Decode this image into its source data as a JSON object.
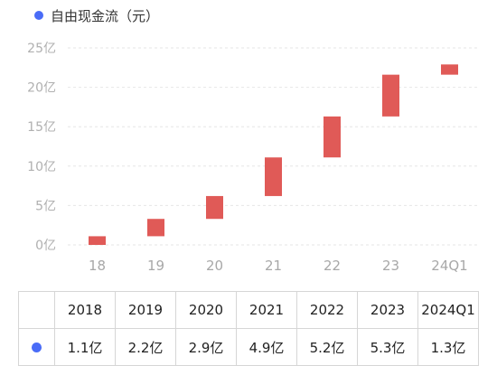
{
  "legend": {
    "label": "自由现金流（元）",
    "dot_color": "#4a6cf7"
  },
  "chart_data": {
    "type": "bar",
    "subtype": "waterfall",
    "categories": [
      "18",
      "19",
      "20",
      "21",
      "22",
      "23",
      "24Q1"
    ],
    "ranges": [
      [
        0,
        1.1
      ],
      [
        1.1,
        3.3
      ],
      [
        3.3,
        6.2
      ],
      [
        6.2,
        11.1
      ],
      [
        11.1,
        16.3
      ],
      [
        16.3,
        21.6
      ],
      [
        21.6,
        22.9
      ]
    ],
    "values": [
      1.1,
      2.2,
      2.9,
      4.9,
      5.2,
      5.3,
      1.3
    ],
    "y_ticks": [
      "0亿",
      "5亿",
      "10亿",
      "15亿",
      "20亿",
      "25亿"
    ],
    "ylim": [
      0,
      25
    ],
    "grid": true,
    "bar_color": "#e05a57",
    "grid_color": "#e6e6e6"
  },
  "table": {
    "headers": [
      "2018",
      "2019",
      "2020",
      "2021",
      "2022",
      "2023",
      "2024Q1"
    ],
    "values": [
      "1.1亿",
      "2.2亿",
      "2.9亿",
      "4.9亿",
      "5.2亿",
      "5.3亿",
      "1.3亿"
    ]
  }
}
